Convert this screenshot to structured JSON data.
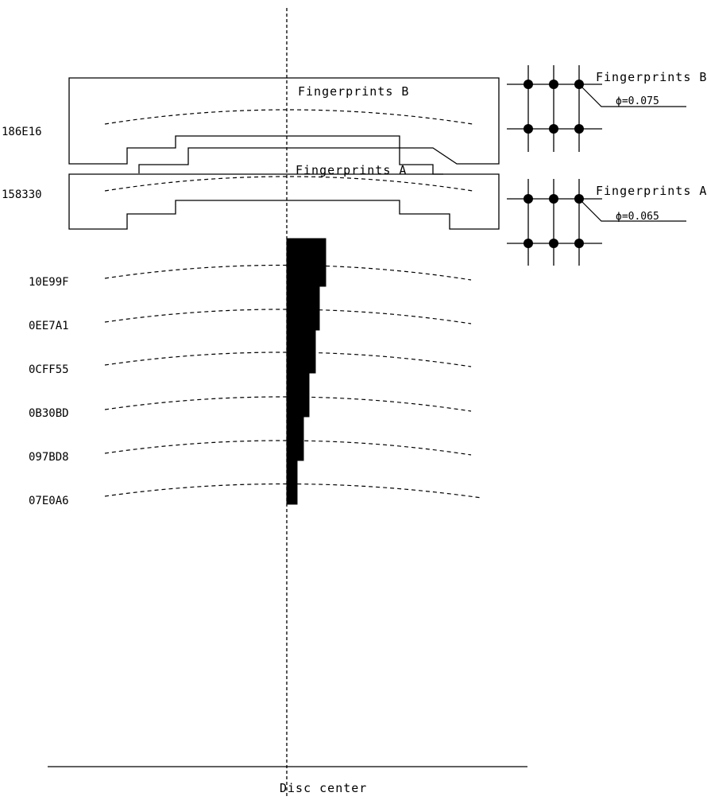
{
  "region_b": {
    "address": "186E16",
    "label": "Fingerprints B",
    "grid_label": "Fingerprints B",
    "diameter": "ϕ=0.075"
  },
  "region_a": {
    "address": "158330",
    "label": "Fingerprints A",
    "grid_label": "Fingerprints A",
    "diameter": "ϕ=0.065"
  },
  "tracks": [
    {
      "address": "10E99F"
    },
    {
      "address": "0EE7A1"
    },
    {
      "address": "0CFF55"
    },
    {
      "address": "0B30BD"
    },
    {
      "address": "097BD8"
    },
    {
      "address": "07E0A6"
    }
  ],
  "axis_label": "Disc center",
  "colors": {
    "ink": "#000000",
    "background": "#ffffff"
  }
}
